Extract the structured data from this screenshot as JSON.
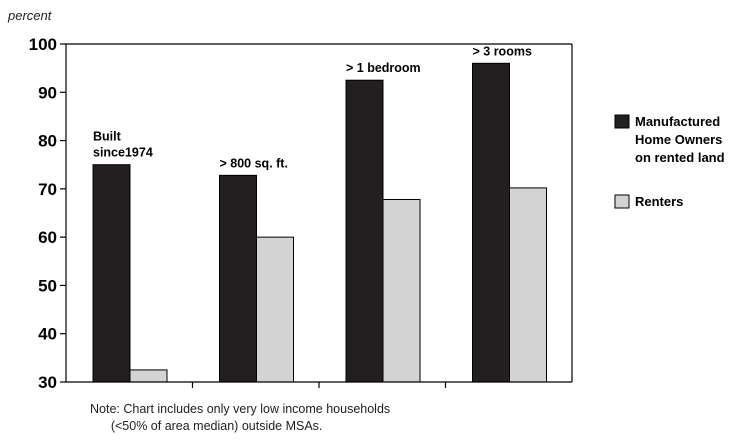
{
  "chart_data": {
    "type": "bar",
    "ylabel": "percent",
    "ylim": [
      30,
      100
    ],
    "yticks": [
      30,
      40,
      50,
      60,
      70,
      80,
      90,
      100
    ],
    "categories": [
      "Built since1974",
      "> 800 sq. ft.",
      "> 1 bedroom",
      "> 3 rooms"
    ],
    "category_annotations": [
      [
        "Built",
        "since1974"
      ],
      [
        "> 800 sq. ft."
      ],
      [
        "> 1 bedroom"
      ],
      [
        "> 3 rooms"
      ]
    ],
    "series": [
      {
        "name": "Manufactured Home Owners on rented land",
        "legend_lines": [
          "Manufactured",
          "Home Owners",
          "on rented land"
        ],
        "color": "#231f20",
        "values": [
          75,
          72.8,
          92.5,
          96
        ]
      },
      {
        "name": "Renters",
        "legend_lines": [
          "Renters"
        ],
        "color": "#d3d3d3",
        "values": [
          32.5,
          60,
          67.8,
          70.2
        ]
      }
    ],
    "grid": false,
    "legend_position": "right"
  },
  "note": {
    "line1": "Note: Chart includes only very low income households",
    "line2": "      (<50% of area median) outside MSAs."
  }
}
